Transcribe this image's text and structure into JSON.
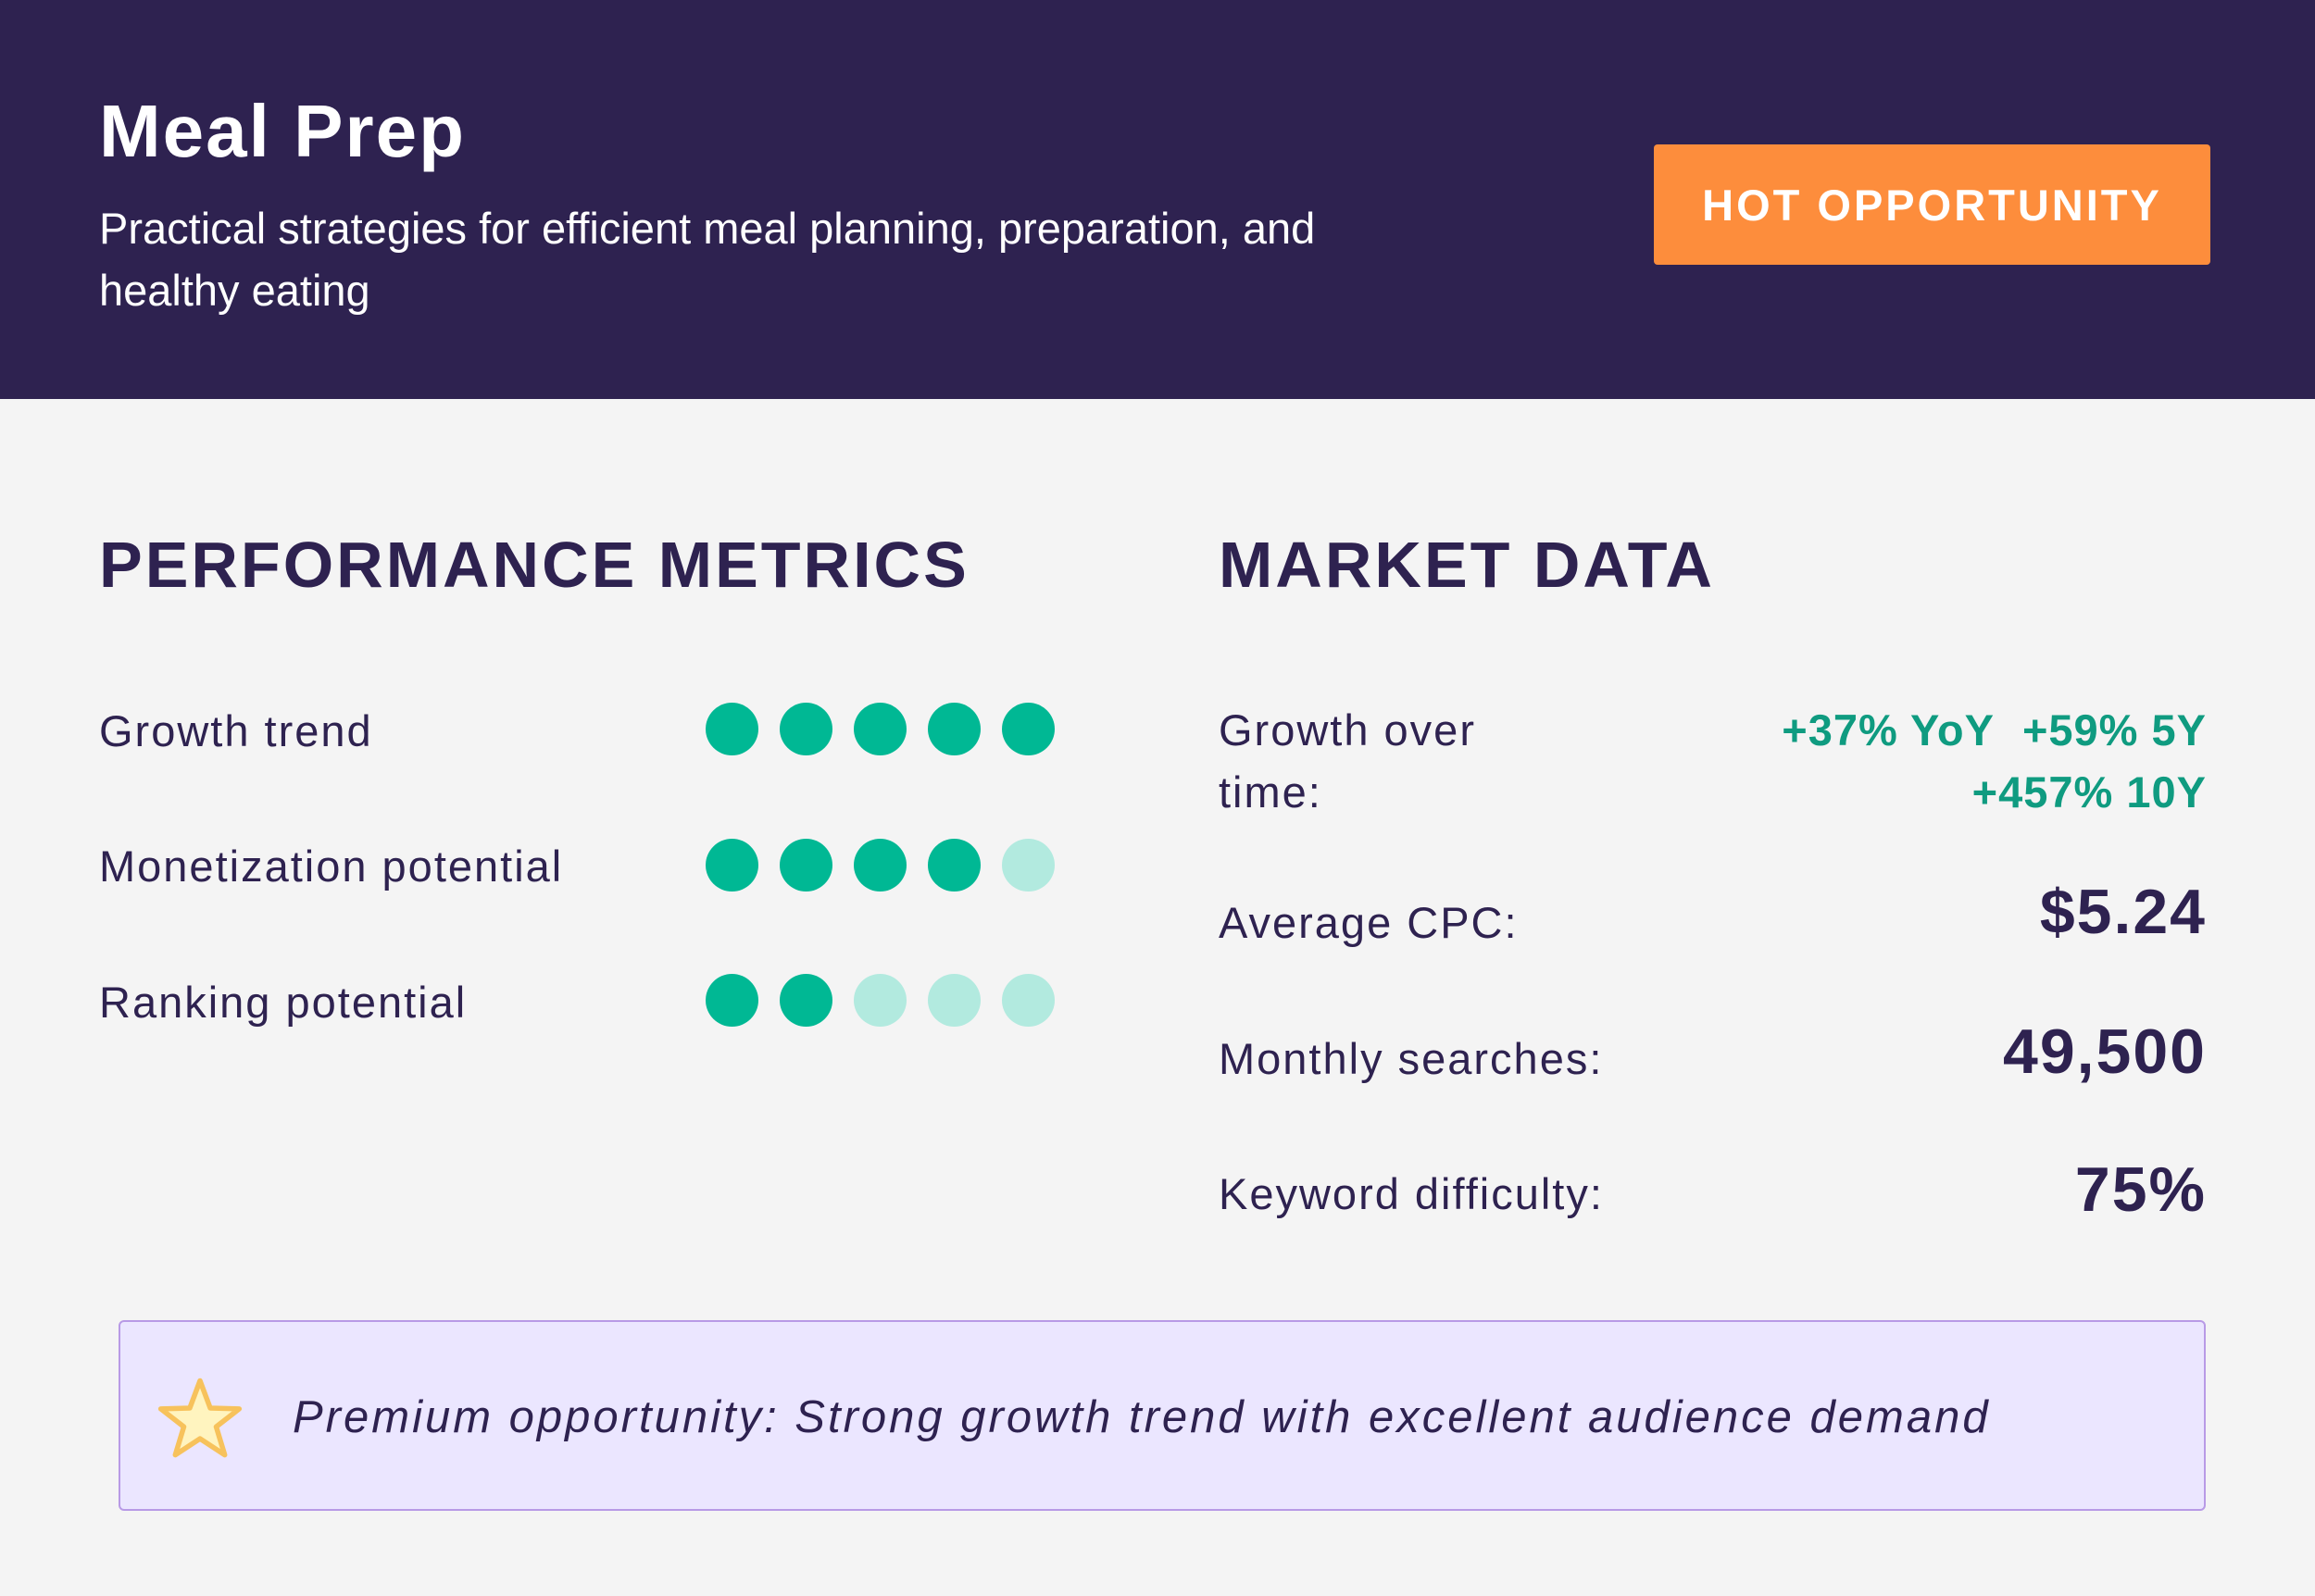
{
  "header": {
    "title": "Meal Prep",
    "subtitle": "Practical strategies for efficient meal planning, preparation, and healthy eating",
    "badge": "HOT OPPORTUNITY"
  },
  "performance": {
    "title": "PERFORMANCE METRICS",
    "metrics": [
      {
        "label": "Growth trend",
        "rating": 5,
        "max": 5
      },
      {
        "label": "Monetization potential",
        "rating": 4,
        "max": 5
      },
      {
        "label": "Ranking potential",
        "rating": 2,
        "max": 5
      }
    ]
  },
  "market": {
    "title": "MARKET DATA",
    "growth_label": "Growth over time:",
    "growth_yoy": "+37% YoY",
    "growth_5y": "+59% 5Y",
    "growth_10y": "+457% 10Y",
    "cpc_label": "Average CPC:",
    "cpc_value": "$5.24",
    "searches_label": "Monthly searches:",
    "searches_value": "49,500",
    "difficulty_label": "Keyword difficulty:",
    "difficulty_value": "75%"
  },
  "callout": {
    "icon": "star-icon",
    "text": "Premium opportunity: Strong growth trend with excellent audience demand"
  },
  "colors": {
    "header_bg": "#2e2250",
    "badge_bg": "#fd8d3c",
    "dot_filled": "#00b894",
    "dot_empty": "#b2eadf",
    "growth_text": "#0f9b80",
    "callout_bg": "#ebe6ff"
  }
}
